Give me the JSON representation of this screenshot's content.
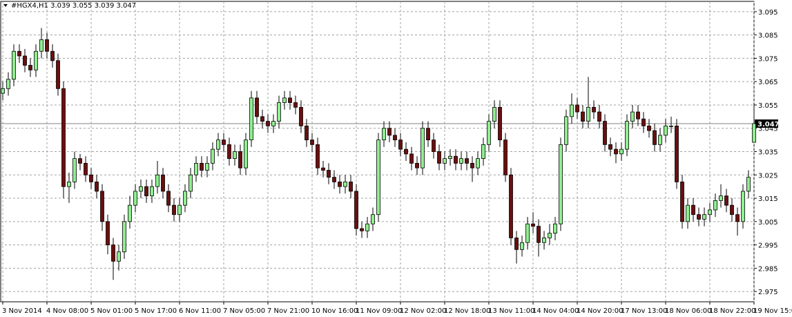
{
  "chart_data": {
    "type": "candlestick",
    "title": "#HGX4,H1  3.039 3.055 3.039 3.047",
    "ylim": [
      2.9706,
      3.0994
    ],
    "yticks": [
      2.975,
      2.985,
      2.995,
      3.005,
      3.015,
      3.025,
      3.035,
      3.045,
      3.055,
      3.065,
      3.075,
      3.085,
      3.095
    ],
    "grid": true,
    "up_color": "#90ee90",
    "down_color": "#6b0f0f",
    "current_price": 3.047,
    "categories": [
      "3 Nov 2014",
      null,
      null,
      null,
      null,
      null,
      null,
      null,
      "4 Nov 08:00",
      null,
      null,
      null,
      null,
      null,
      null,
      null,
      "5 Nov 01:00",
      null,
      null,
      null,
      null,
      null,
      null,
      null,
      "5 Nov 17:00",
      null,
      null,
      null,
      null,
      null,
      null,
      null,
      "6 Nov 11:00",
      null,
      null,
      null,
      null,
      null,
      null,
      null,
      "7 Nov 05:00",
      null,
      null,
      null,
      null,
      null,
      null,
      null,
      "7 Nov 21:00",
      null,
      null,
      null,
      null,
      null,
      null,
      null,
      "10 Nov 16:00",
      null,
      null,
      null,
      null,
      null,
      null,
      null,
      "11 Nov 09:00",
      null,
      null,
      null,
      null,
      null,
      null,
      null,
      "12 Nov 02:00",
      null,
      null,
      null,
      null,
      null,
      null,
      null,
      "12 Nov 18:00",
      null,
      null,
      null,
      null,
      null,
      null,
      null,
      "13 Nov 11:00",
      null,
      null,
      null,
      null,
      null,
      null,
      null,
      "14 Nov 04:00",
      null,
      null,
      null,
      null,
      null,
      null,
      null,
      "14 Nov 20:00",
      null,
      null,
      null,
      null,
      null,
      null,
      null,
      "17 Nov 13:00",
      null,
      null,
      null,
      null,
      null,
      null,
      null,
      "18 Nov 06:00",
      null,
      null,
      null,
      null,
      null,
      null,
      null,
      "18 Nov 22:00",
      null,
      null,
      null,
      null,
      null,
      null,
      null,
      "19 Nov 15:00"
    ],
    "ohlc": [
      [
        3.06,
        3.065,
        3.057,
        3.062
      ],
      [
        3.062,
        3.069,
        3.059,
        3.066
      ],
      [
        3.066,
        3.081,
        3.063,
        3.078
      ],
      [
        3.078,
        3.081,
        3.073,
        3.076
      ],
      [
        3.076,
        3.079,
        3.069,
        3.072
      ],
      [
        3.072,
        3.075,
        3.067,
        3.07
      ],
      [
        3.07,
        3.081,
        3.067,
        3.078
      ],
      [
        3.078,
        3.088,
        3.075,
        3.083
      ],
      [
        3.083,
        3.086,
        3.075,
        3.078
      ],
      [
        3.078,
        3.081,
        3.071,
        3.074
      ],
      [
        3.074,
        3.077,
        3.059,
        3.062
      ],
      [
        3.062,
        3.065,
        3.015,
        3.02
      ],
      [
        3.02,
        3.026,
        3.013,
        3.022
      ],
      [
        3.022,
        3.035,
        3.019,
        3.032
      ],
      [
        3.032,
        3.034,
        3.027,
        3.03
      ],
      [
        3.03,
        3.033,
        3.022,
        3.025
      ],
      [
        3.025,
        3.028,
        3.019,
        3.022
      ],
      [
        3.022,
        3.025,
        3.015,
        3.018
      ],
      [
        3.018,
        3.021,
        3.001,
        3.005
      ],
      [
        3.005,
        3.008,
        2.991,
        2.995
      ],
      [
        2.995,
        2.998,
        2.98,
        2.988
      ],
      [
        2.988,
        2.995,
        2.984,
        2.992
      ],
      [
        2.992,
        3.008,
        2.989,
        3.005
      ],
      [
        3.005,
        3.016,
        3.002,
        3.012
      ],
      [
        3.012,
        3.021,
        3.009,
        3.018
      ],
      [
        3.018,
        3.023,
        3.015,
        3.02
      ],
      [
        3.02,
        3.023,
        3.013,
        3.016
      ],
      [
        3.016,
        3.023,
        3.013,
        3.02
      ],
      [
        3.02,
        3.031,
        3.017,
        3.025
      ],
      [
        3.025,
        3.028,
        3.015,
        3.018
      ],
      [
        3.018,
        3.021,
        3.009,
        3.012
      ],
      [
        3.012,
        3.015,
        3.005,
        3.008
      ],
      [
        3.008,
        3.015,
        3.005,
        3.012
      ],
      [
        3.012,
        3.021,
        3.009,
        3.018
      ],
      [
        3.018,
        3.028,
        3.015,
        3.025
      ],
      [
        3.025,
        3.033,
        3.022,
        3.03
      ],
      [
        3.03,
        3.033,
        3.024,
        3.027
      ],
      [
        3.027,
        3.033,
        3.024,
        3.03
      ],
      [
        3.03,
        3.039,
        3.027,
        3.036
      ],
      [
        3.036,
        3.043,
        3.033,
        3.04
      ],
      [
        3.04,
        3.043,
        3.035,
        3.038
      ],
      [
        3.038,
        3.041,
        3.029,
        3.032
      ],
      [
        3.032,
        3.038,
        3.029,
        3.035
      ],
      [
        3.035,
        3.038,
        3.025,
        3.028
      ],
      [
        3.028,
        3.043,
        3.025,
        3.04
      ],
      [
        3.04,
        3.061,
        3.037,
        3.058
      ],
      [
        3.058,
        3.061,
        3.047,
        3.05
      ],
      [
        3.05,
        3.053,
        3.045,
        3.048
      ],
      [
        3.048,
        3.051,
        3.043,
        3.046
      ],
      [
        3.046,
        3.051,
        3.043,
        3.048
      ],
      [
        3.048,
        3.059,
        3.045,
        3.056
      ],
      [
        3.056,
        3.061,
        3.053,
        3.058
      ],
      [
        3.058,
        3.061,
        3.053,
        3.056
      ],
      [
        3.056,
        3.059,
        3.051,
        3.054
      ],
      [
        3.054,
        3.057,
        3.043,
        3.046
      ],
      [
        3.046,
        3.049,
        3.037,
        3.04
      ],
      [
        3.04,
        3.043,
        3.035,
        3.038
      ],
      [
        3.038,
        3.041,
        3.025,
        3.028
      ],
      [
        3.028,
        3.031,
        3.024,
        3.027
      ],
      [
        3.027,
        3.03,
        3.021,
        3.024
      ],
      [
        3.024,
        3.027,
        3.019,
        3.022
      ],
      [
        3.022,
        3.025,
        3.017,
        3.02
      ],
      [
        3.02,
        3.025,
        3.017,
        3.022
      ],
      [
        3.022,
        3.025,
        3.015,
        3.018
      ],
      [
        3.018,
        3.021,
        2.999,
        3.002
      ],
      [
        3.002,
        3.005,
        2.998,
        3.001
      ],
      [
        3.001,
        3.007,
        2.998,
        3.004
      ],
      [
        3.004,
        3.011,
        3.001,
        3.008
      ],
      [
        3.008,
        3.043,
        3.005,
        3.04
      ],
      [
        3.04,
        3.048,
        3.037,
        3.045
      ],
      [
        3.045,
        3.048,
        3.039,
        3.042
      ],
      [
        3.042,
        3.045,
        3.037,
        3.04
      ],
      [
        3.04,
        3.043,
        3.033,
        3.036
      ],
      [
        3.036,
        3.039,
        3.031,
        3.034
      ],
      [
        3.034,
        3.037,
        3.027,
        3.03
      ],
      [
        3.03,
        3.033,
        3.025,
        3.028
      ],
      [
        3.028,
        3.048,
        3.025,
        3.045
      ],
      [
        3.045,
        3.048,
        3.037,
        3.04
      ],
      [
        3.04,
        3.043,
        3.032,
        3.035
      ],
      [
        3.035,
        3.038,
        3.027,
        3.03
      ],
      [
        3.03,
        3.035,
        3.027,
        3.032
      ],
      [
        3.032,
        3.036,
        3.029,
        3.033
      ],
      [
        3.033,
        3.036,
        3.027,
        3.03
      ],
      [
        3.03,
        3.035,
        3.027,
        3.032
      ],
      [
        3.032,
        3.035,
        3.027,
        3.03
      ],
      [
        3.03,
        3.033,
        3.022,
        3.028
      ],
      [
        3.028,
        3.035,
        3.025,
        3.032
      ],
      [
        3.032,
        3.041,
        3.029,
        3.038
      ],
      [
        3.038,
        3.051,
        3.035,
        3.048
      ],
      [
        3.048,
        3.057,
        3.045,
        3.054
      ],
      [
        3.054,
        3.057,
        3.037,
        3.04
      ],
      [
        3.04,
        3.043,
        3.022,
        3.025
      ],
      [
        3.025,
        3.028,
        2.995,
        2.998
      ],
      [
        2.998,
        3.001,
        2.987,
        2.993
      ],
      [
        2.993,
        2.999,
        2.99,
        2.996
      ],
      [
        2.996,
        3.007,
        2.993,
        3.004
      ],
      [
        3.004,
        3.009,
        3.0,
        3.003
      ],
      [
        3.003,
        3.006,
        2.99,
        2.996
      ],
      [
        2.996,
        3.001,
        2.993,
        2.998
      ],
      [
        2.998,
        3.004,
        2.995,
        3.0
      ],
      [
        3.0,
        3.007,
        2.997,
        3.004
      ],
      [
        3.004,
        3.041,
        3.001,
        3.038
      ],
      [
        3.038,
        3.053,
        3.035,
        3.05
      ],
      [
        3.05,
        3.06,
        3.047,
        3.055
      ],
      [
        3.055,
        3.058,
        3.049,
        3.052
      ],
      [
        3.052,
        3.055,
        3.045,
        3.048
      ],
      [
        3.048,
        3.067,
        3.045,
        3.054
      ],
      [
        3.054,
        3.057,
        3.049,
        3.052
      ],
      [
        3.052,
        3.055,
        3.045,
        3.048
      ],
      [
        3.048,
        3.051,
        3.035,
        3.038
      ],
      [
        3.038,
        3.041,
        3.033,
        3.036
      ],
      [
        3.036,
        3.039,
        3.03,
        3.034
      ],
      [
        3.034,
        3.039,
        3.031,
        3.036
      ],
      [
        3.036,
        3.051,
        3.033,
        3.048
      ],
      [
        3.048,
        3.055,
        3.045,
        3.052
      ],
      [
        3.052,
        3.055,
        3.046,
        3.049
      ],
      [
        3.049,
        3.052,
        3.043,
        3.046
      ],
      [
        3.046,
        3.049,
        3.041,
        3.044
      ],
      [
        3.044,
        3.047,
        3.035,
        3.038
      ],
      [
        3.038,
        3.045,
        3.035,
        3.042
      ],
      [
        3.042,
        3.049,
        3.039,
        3.046
      ],
      [
        3.046,
        3.05,
        3.043,
        3.046
      ],
      [
        3.046,
        3.049,
        3.019,
        3.022
      ],
      [
        3.022,
        3.025,
        3.002,
        3.005
      ],
      [
        3.005,
        3.015,
        3.002,
        3.012
      ],
      [
        3.012,
        3.015,
        3.005,
        3.008
      ],
      [
        3.008,
        3.011,
        3.003,
        3.006
      ],
      [
        3.006,
        3.011,
        3.003,
        3.008
      ],
      [
        3.008,
        3.013,
        3.005,
        3.01
      ],
      [
        3.01,
        3.017,
        3.007,
        3.014
      ],
      [
        3.014,
        3.021,
        3.011,
        3.016
      ],
      [
        3.016,
        3.019,
        3.009,
        3.012
      ],
      [
        3.012,
        3.015,
        3.005,
        3.008
      ],
      [
        3.008,
        3.011,
        2.999,
        3.005
      ],
      [
        3.005,
        3.021,
        3.002,
        3.018
      ],
      [
        3.018,
        3.027,
        3.015,
        3.024
      ],
      [
        3.039,
        3.055,
        3.039,
        3.047
      ]
    ]
  }
}
